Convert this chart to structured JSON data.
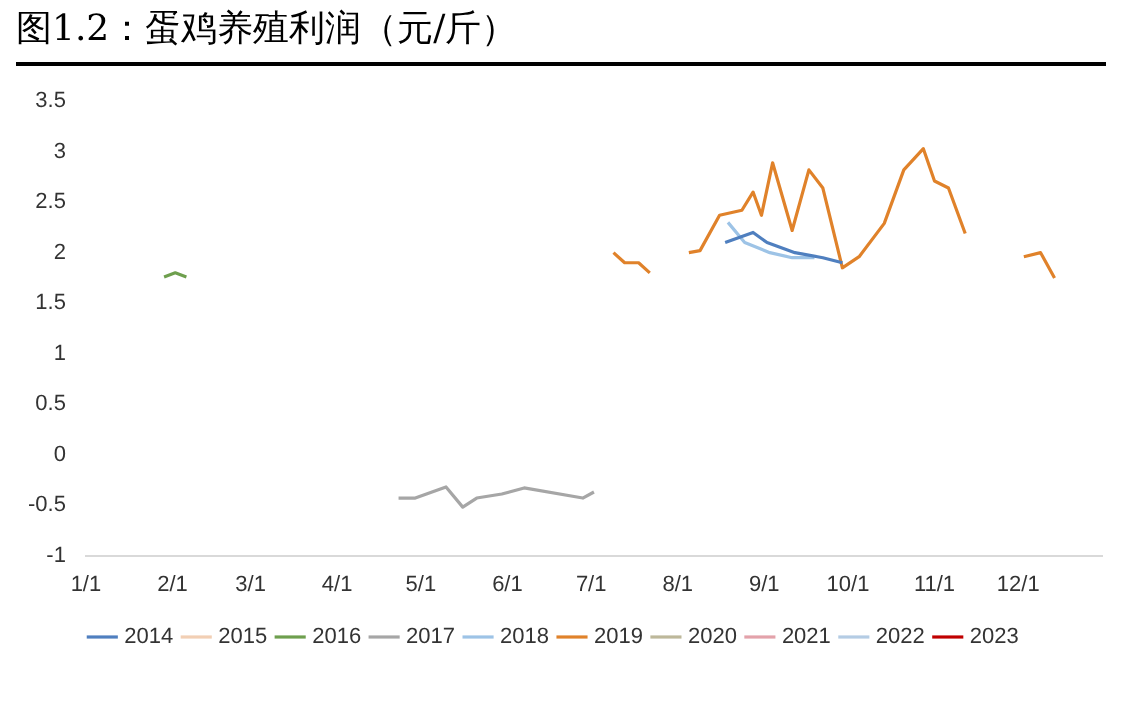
{
  "chart_data": {
    "type": "line",
    "title": "图1.2：蛋鸡养殖利润（元/斤）",
    "xlim": [
      "--01-01",
      "--12-31"
    ],
    "xticks": [
      {
        "value": "--01-01",
        "label": "1/1"
      },
      {
        "value": "--02-01",
        "label": "2/1"
      },
      {
        "value": "--03-01",
        "label": "3/1"
      },
      {
        "value": "--04-01",
        "label": "4/1"
      },
      {
        "value": "--05-01",
        "label": "5/1"
      },
      {
        "value": "--06-01",
        "label": "6/1"
      },
      {
        "value": "--07-01",
        "label": "7/1"
      },
      {
        "value": "--08-01",
        "label": "8/1"
      },
      {
        "value": "--09-01",
        "label": "9/1"
      },
      {
        "value": "--10-01",
        "label": "10/1"
      },
      {
        "value": "--11-01",
        "label": "11/1"
      },
      {
        "value": "--12-01",
        "label": "12/1"
      }
    ],
    "ylim": [
      -1,
      3.5
    ],
    "yticks": [
      -1,
      -0.5,
      0,
      0.5,
      1,
      1.5,
      2,
      2.5,
      3,
      3.5
    ],
    "grid": false,
    "legend": "bottom",
    "marker": "none",
    "line_style": "solid",
    "series": [
      {
        "name": "2014",
        "color": "#4f7fbf",
        "x": [
          "--08-18",
          "--08-24",
          "--08-28",
          "--09-02",
          "--09-12",
          "--09-22",
          "--09-29"
        ],
        "values": [
          2.1,
          2.16,
          2.2,
          2.1,
          2.0,
          1.95,
          1.9
        ]
      },
      {
        "name": "2015",
        "color": "#f2cfb4"
      },
      {
        "name": "2016",
        "color": "#6e9f4e",
        "x": [
          "--01-29",
          "--02-02",
          "--02-06"
        ],
        "values": [
          1.76,
          1.8,
          1.76
        ]
      },
      {
        "name": "2017",
        "color": "#a6a6a6",
        "x": [
          "--04-23",
          "--04-29",
          "--05-10",
          "--05-16",
          "--05-21",
          "--05-30",
          "--06-07",
          "--06-28",
          "--07-02"
        ],
        "values": [
          -0.43,
          -0.43,
          -0.32,
          -0.52,
          -0.43,
          -0.39,
          -0.33,
          -0.43,
          -0.37
        ]
      },
      {
        "name": "2018",
        "color": "#9dc3e6",
        "x": [
          "--08-19",
          "--08-25",
          "--09-03",
          "--09-11",
          "--09-19"
        ],
        "values": [
          2.3,
          2.1,
          2.0,
          1.95,
          1.95
        ]
      },
      {
        "name": "2019",
        "color": "#e0822a",
        "x": [
          "--07-09",
          "--07-13",
          "--07-18",
          "--07-22",
          null,
          "--08-05",
          "--08-09",
          "--08-16",
          "--08-24",
          "--08-28",
          "--08-31",
          "--09-04",
          "--09-11",
          "--09-17",
          "--09-22",
          "--09-29",
          "--10-05",
          "--10-14",
          "--10-21",
          "--10-28",
          "--11-01",
          "--11-06",
          "--11-12",
          null,
          "--12-03",
          "--12-09",
          "--12-14"
        ],
        "values": [
          2.0,
          1.9,
          1.9,
          1.8,
          null,
          2.0,
          2.02,
          2.37,
          2.42,
          2.6,
          2.37,
          2.89,
          2.22,
          2.82,
          2.64,
          1.85,
          1.96,
          2.29,
          2.82,
          3.03,
          2.71,
          2.64,
          2.19,
          null,
          1.96,
          2.0,
          1.75
        ]
      },
      {
        "name": "2020",
        "color": "#bdb89a"
      },
      {
        "name": "2021",
        "color": "#e3a2aa"
      },
      {
        "name": "2022",
        "color": "#b4cce4"
      },
      {
        "name": "2023",
        "color": "#c00000"
      }
    ]
  }
}
